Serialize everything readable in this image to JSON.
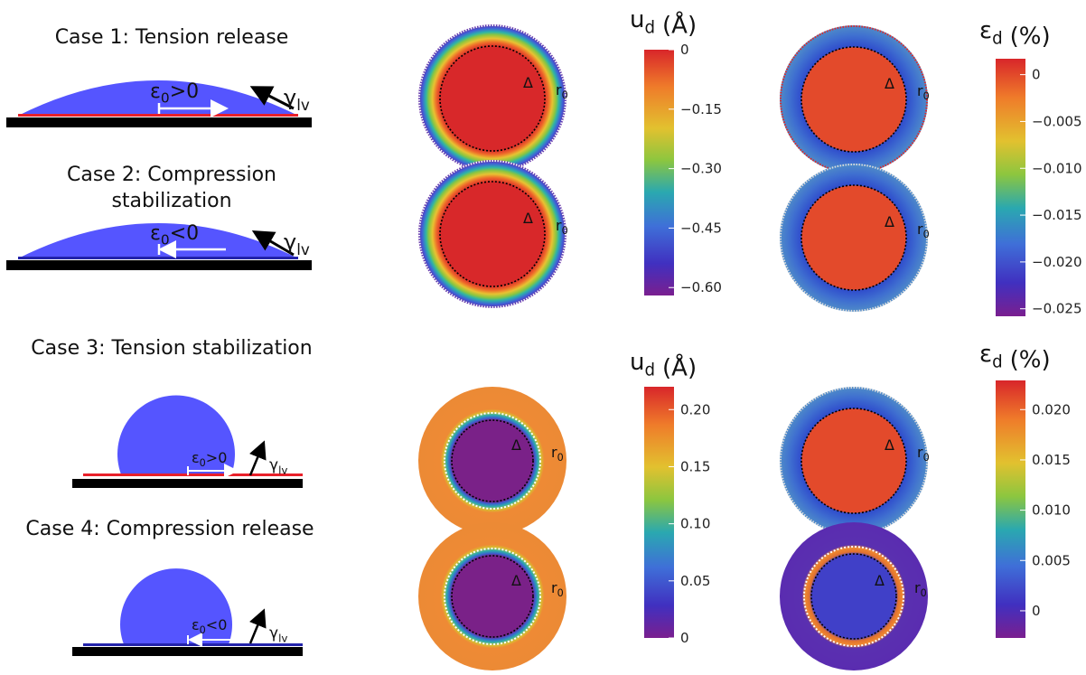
{
  "symbols": {
    "epsilon": "ε",
    "zero": "0",
    "gamma": "γ",
    "lv": "lv",
    "delta": "Δ",
    "r": "r",
    "d": "d"
  },
  "cases": [
    {
      "title": [
        "Case 1: Tension release"
      ],
      "sign": ">0"
    },
    {
      "title": [
        "Case 2: Compression",
        "stabilization"
      ],
      "sign": "<0"
    },
    {
      "title": [
        "Case 3: Tension stabilization"
      ],
      "sign": ">0"
    },
    {
      "title": [
        "Case 4: Compression release"
      ],
      "sign": "<0"
    }
  ],
  "colorbars": [
    {
      "symbol": "u",
      "unit": "(Å)",
      "range": [
        -0.62,
        0
      ],
      "ticks": [
        {
          "value": 0,
          "label": "0"
        },
        {
          "value": -0.15,
          "label": "−0.15"
        },
        {
          "value": -0.3,
          "label": "−0.30"
        },
        {
          "value": -0.45,
          "label": "−0.45"
        },
        {
          "value": -0.6,
          "label": "−0.60"
        }
      ]
    },
    {
      "symbol": "ε",
      "unit": "(%)",
      "range": [
        -0.0258,
        0.0017
      ],
      "ticks": [
        {
          "value": 0,
          "label": "0"
        },
        {
          "value": -0.005,
          "label": "−0.005"
        },
        {
          "value": -0.01,
          "label": "−0.010"
        },
        {
          "value": -0.015,
          "label": "−0.015"
        },
        {
          "value": -0.02,
          "label": "−0.020"
        },
        {
          "value": -0.025,
          "label": "−0.025"
        }
      ]
    },
    {
      "symbol": "u",
      "unit": "(Å)",
      "range": [
        0,
        0.22
      ],
      "ticks": [
        {
          "value": 0.2,
          "label": "0.20"
        },
        {
          "value": 0.15,
          "label": "0.15"
        },
        {
          "value": 0.1,
          "label": "0.10"
        },
        {
          "value": 0.05,
          "label": "0.05"
        },
        {
          "value": 0,
          "label": "0"
        }
      ]
    },
    {
      "symbol": "ε",
      "unit": "(%)",
      "range": [
        -0.0027,
        0.0229
      ],
      "ticks": [
        {
          "value": 0.02,
          "label": "0.020"
        },
        {
          "value": 0.015,
          "label": "0.015"
        },
        {
          "value": 0.01,
          "label": "0.010"
        },
        {
          "value": 0.005,
          "label": "0.005"
        },
        {
          "value": 0,
          "label": "0"
        }
      ]
    }
  ]
}
